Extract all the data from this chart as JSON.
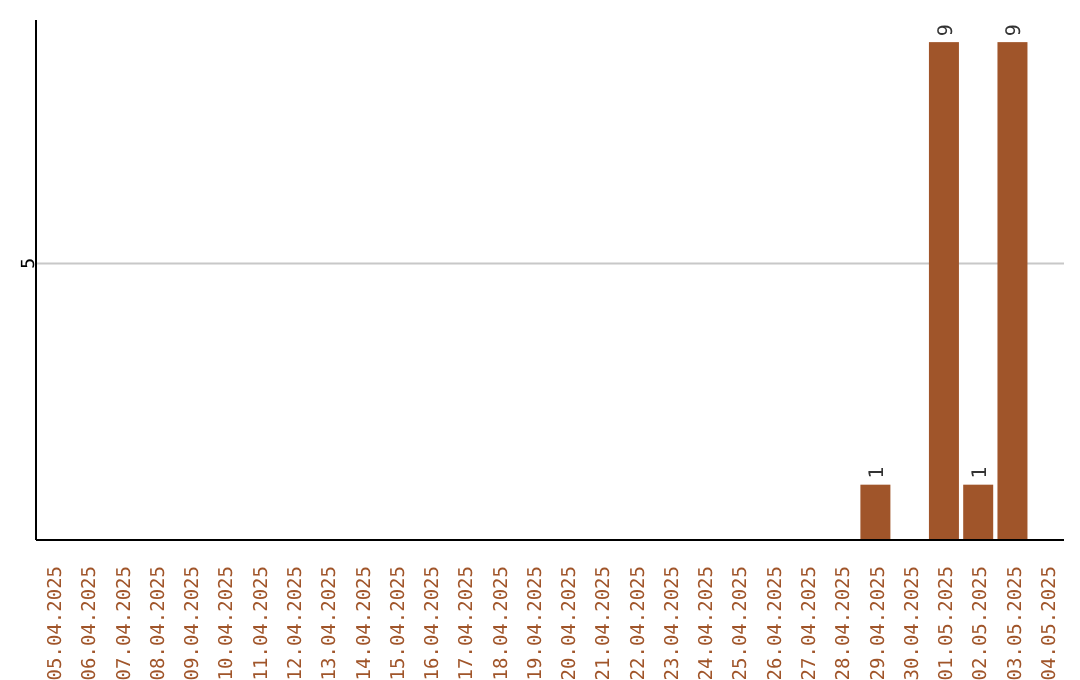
{
  "chart_data": {
    "type": "bar",
    "categories": [
      "05.04.2025",
      "06.04.2025",
      "07.04.2025",
      "08.04.2025",
      "09.04.2025",
      "10.04.2025",
      "11.04.2025",
      "12.04.2025",
      "13.04.2025",
      "14.04.2025",
      "15.04.2025",
      "16.04.2025",
      "17.04.2025",
      "18.04.2025",
      "19.04.2025",
      "20.04.2025",
      "21.04.2025",
      "22.04.2025",
      "23.04.2025",
      "24.04.2025",
      "25.04.2025",
      "26.04.2025",
      "27.04.2025",
      "28.04.2025",
      "29.04.2025",
      "30.04.2025",
      "01.05.2025",
      "02.05.2025",
      "03.05.2025",
      "04.05.2025"
    ],
    "values": [
      null,
      null,
      null,
      null,
      null,
      null,
      null,
      null,
      null,
      null,
      null,
      null,
      null,
      null,
      null,
      null,
      null,
      null,
      null,
      null,
      null,
      null,
      null,
      null,
      1,
      null,
      9,
      1,
      9,
      null
    ],
    "data_labels": true,
    "color": "#a0552a",
    "ylim": [
      0,
      9.4
    ],
    "yticks": [
      5
    ],
    "grid": "y"
  }
}
